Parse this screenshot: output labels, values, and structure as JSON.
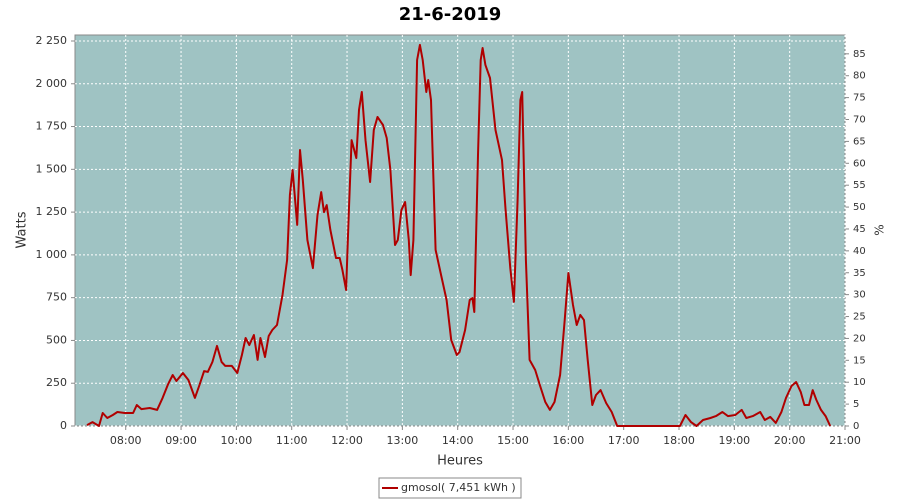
{
  "chart_data": {
    "type": "line",
    "title": "21-6-2019",
    "xlabel": "Heures",
    "ylabel": "Watts",
    "y2label": "%",
    "x": [
      "07:18",
      "07:24",
      "07:31",
      "07:35",
      "07:40",
      "07:46",
      "07:51",
      "07:59",
      "08:08",
      "08:12",
      "08:17",
      "08:26",
      "08:34",
      "08:40",
      "08:46",
      "08:51",
      "08:55",
      "09:02",
      "09:08",
      "09:15",
      "09:20",
      "09:25",
      "09:29",
      "09:34",
      "09:39",
      "09:44",
      "09:48",
      "09:55",
      "10:01",
      "10:06",
      "10:10",
      "10:14",
      "10:19",
      "10:23",
      "10:26",
      "10:31",
      "10:35",
      "10:39",
      "10:44",
      "10:50",
      "10:55",
      "10:58",
      "11:01",
      "11:06",
      "11:09",
      "11:12",
      "11:17",
      "11:23",
      "11:28",
      "11:32",
      "11:35",
      "11:38",
      "11:42",
      "11:48",
      "11:52",
      "11:55",
      "11:59",
      "12:02",
      "12:05",
      "12:10",
      "12:13",
      "12:16",
      "12:20",
      "12:25",
      "12:29",
      "12:33",
      "12:39",
      "12:43",
      "12:47",
      "12:52",
      "12:55",
      "12:59",
      "13:03",
      "13:07",
      "13:09",
      "13:12",
      "13:16",
      "13:19",
      "13:22",
      "13:26",
      "13:28",
      "13:31",
      "13:36",
      "13:42",
      "13:48",
      "13:53",
      "13:59",
      "14:02",
      "14:08",
      "14:13",
      "14:16",
      "14:18",
      "14:22",
      "14:25",
      "14:27",
      "14:30",
      "14:35",
      "14:41",
      "14:48",
      "14:52",
      "14:57",
      "15:01",
      "15:05",
      "15:08",
      "15:10",
      "15:14",
      "15:18",
      "15:24",
      "15:29",
      "15:35",
      "15:40",
      "15:45",
      "15:51",
      "15:56",
      "16:00",
      "16:05",
      "16:09",
      "16:13",
      "16:17",
      "16:21",
      "16:26",
      "16:30",
      "16:35",
      "16:41",
      "16:47",
      "16:53",
      "18:01",
      "18:07",
      "18:13",
      "18:19",
      "18:26",
      "18:34",
      "18:40",
      "18:47",
      "18:53",
      "19:01",
      "19:08",
      "19:13",
      "19:20",
      "19:28",
      "19:33",
      "19:39",
      "19:45",
      "19:51",
      "19:56",
      "20:02",
      "20:07",
      "20:12",
      "20:16",
      "20:21",
      "20:25",
      "20:29",
      "20:34",
      "20:39",
      "20:44"
    ],
    "series": [
      {
        "name": "gmosol( 7,451 kWh )",
        "color": "#b00000",
        "values": [
          5,
          23,
          0,
          76,
          47,
          64,
          82,
          76,
          76,
          123,
          99,
          105,
          94,
          164,
          245,
          298,
          263,
          310,
          269,
          164,
          240,
          321,
          316,
          374,
          468,
          374,
          351,
          351,
          310,
          415,
          514,
          473,
          532,
          386,
          514,
          403,
          526,
          561,
          590,
          766,
          970,
          1350,
          1496,
          1175,
          1613,
          1438,
          1087,
          923,
          1233,
          1367,
          1250,
          1291,
          1145,
          982,
          982,
          912,
          795,
          1262,
          1671,
          1566,
          1847,
          1952,
          1671,
          1426,
          1730,
          1806,
          1759,
          1683,
          1496,
          1058,
          1087,
          1262,
          1309,
          1087,
          882,
          1087,
          2139,
          2227,
          2139,
          1952,
          2022,
          1905,
          1029,
          882,
          736,
          503,
          415,
          432,
          561,
          736,
          748,
          666,
          1584,
          2139,
          2209,
          2110,
          2034,
          1730,
          1554,
          1262,
          923,
          725,
          1321,
          1905,
          1952,
          970,
          386,
          327,
          240,
          140,
          94,
          140,
          298,
          619,
          894,
          707,
          590,
          649,
          619,
          386,
          123,
          181,
          210,
          134,
          82,
          0,
          0,
          64,
          23,
          0,
          35,
          47,
          58,
          82,
          58,
          64,
          94,
          47,
          58,
          82,
          35,
          53,
          18,
          82,
          164,
          234,
          257,
          199,
          123,
          123,
          210,
          152,
          94,
          58,
          0
        ]
      }
    ],
    "xlim": [
      "07:05",
      "21:00"
    ],
    "xticks": [
      "08:00",
      "09:00",
      "10:00",
      "11:00",
      "12:00",
      "13:00",
      "14:00",
      "15:00",
      "16:00",
      "17:00",
      "18:00",
      "19:00",
      "20:00",
      "21:00"
    ],
    "ylim": [
      0,
      2285
    ],
    "yticks": [
      0,
      250,
      500,
      750,
      {
        "value": 1000,
        "label": "1 000"
      },
      {
        "value": 1250,
        "label": "1 250"
      },
      {
        "value": 1500,
        "label": "1 500"
      },
      {
        "value": 1750,
        "label": "1 750"
      },
      {
        "value": 2000,
        "label": "2 000"
      },
      {
        "value": 2250,
        "label": "2 250"
      }
    ],
    "y2lim": [
      0,
      89.3
    ],
    "y2ticks": [
      0,
      5,
      10,
      15,
      20,
      25,
      30,
      35,
      40,
      45,
      50,
      55,
      60,
      65,
      70,
      75,
      80,
      85
    ],
    "grid": true,
    "plot_background": "#9fc3c3"
  }
}
